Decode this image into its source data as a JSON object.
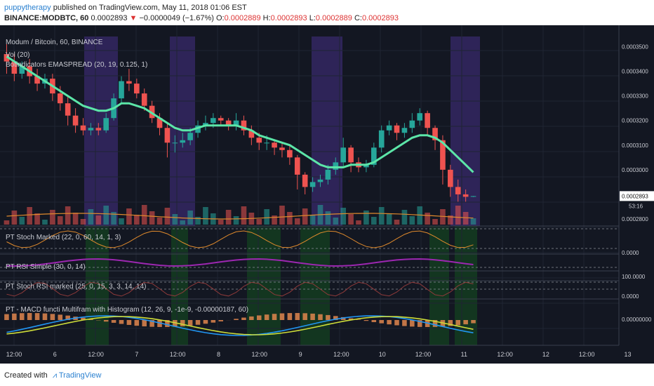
{
  "header": {
    "author": "puppytherapy",
    "published": "published on TradingView.com, May 11, 2018 01:06 EST",
    "symbol": "BINANCE:MODBTC, 60",
    "last": "0.0002893",
    "change": "−0.0000049 (−1.67%)",
    "o_label": "O:",
    "o_value": "0.0002889",
    "h_label": "H:",
    "h_value": "0.0002893",
    "l_label": "L:",
    "l_value": "0.0002889",
    "c_label": "C:",
    "c_value": "0.0002893"
  },
  "panes": {
    "main_title": "Modum / Bitcoin, 60, BINANCE",
    "vol_label": "Vol (20)",
    "ema_label": "Botindicators EMASPREAD (20, 19, 0.125, 1)",
    "stoch_label": "PT Stoch Marked (22, 0, 60, 14, 1, 3)",
    "rsi_label": "PT RSI Simple (30, 0, 14)",
    "stochrsi_label": "PT Stoch RSI marked (25, 0, 15, 3, 3, 14, 14)",
    "macd_label": "PT - MACD functi Multifram with Histogram (12, 26, 9, -1e-9, -0.00000187, 60)"
  },
  "price_axis": {
    "ticks": [
      "0.0003500",
      "0.0003400",
      "0.0003300",
      "0.0003200",
      "0.0003100",
      "0.0003000",
      "0.0002800"
    ],
    "last_tag": "0.0002893",
    "countdown": "53:16",
    "stoch_tick": "0.0000",
    "stochrsi_ticks": [
      "100.0000",
      "0.0000"
    ],
    "macd_tick": "0.00000000"
  },
  "time_axis": {
    "labels": [
      "12:00",
      "6",
      "12:00",
      "7",
      "12:00",
      "8",
      "12:00",
      "9",
      "12:00",
      "10",
      "12:00",
      "11",
      "12:00",
      "12",
      "12:00",
      "13"
    ]
  },
  "chart_data": {
    "type": "candlestick",
    "symbol": "MODBTC",
    "interval": "60",
    "ylim": [
      0.00028,
      0.000353
    ],
    "candles_approx": [
      {
        "o": 0.000347,
        "c": 0.000344,
        "h": 0.000351,
        "l": 0.000339
      },
      {
        "o": 0.000344,
        "c": 0.000339,
        "h": 0.000347,
        "l": 0.000336
      },
      {
        "o": 0.000339,
        "c": 0.000342,
        "h": 0.000344,
        "l": 0.000337
      },
      {
        "o": 0.000342,
        "c": 0.000338,
        "h": 0.000345,
        "l": 0.000335
      },
      {
        "o": 0.000338,
        "c": 0.000335,
        "h": 0.000341,
        "l": 0.000332
      },
      {
        "o": 0.000335,
        "c": 0.000337,
        "h": 0.000339,
        "l": 0.000333
      },
      {
        "o": 0.000337,
        "c": 0.000331,
        "h": 0.000339,
        "l": 0.000328
      },
      {
        "o": 0.000331,
        "c": 0.000327,
        "h": 0.000334,
        "l": 0.000324
      },
      {
        "o": 0.000327,
        "c": 0.000322,
        "h": 0.00033,
        "l": 0.000318
      },
      {
        "o": 0.000322,
        "c": 0.000318,
        "h": 0.000325,
        "l": 0.000315
      },
      {
        "o": 0.000318,
        "c": 0.000316,
        "h": 0.000321,
        "l": 0.000314
      },
      {
        "o": 0.000316,
        "c": 0.000317,
        "h": 0.000319,
        "l": 0.000314
      },
      {
        "o": 0.000317,
        "c": 0.000316,
        "h": 0.000319,
        "l": 0.000314
      },
      {
        "o": 0.000316,
        "c": 0.000321,
        "h": 0.000323,
        "l": 0.000315
      },
      {
        "o": 0.000321,
        "c": 0.000329,
        "h": 0.000331,
        "l": 0.00032
      },
      {
        "o": 0.000329,
        "c": 0.000336,
        "h": 0.000338,
        "l": 0.000327
      },
      {
        "o": 0.000336,
        "c": 0.000335,
        "h": 0.000341,
        "l": 0.000332
      },
      {
        "o": 0.000335,
        "c": 0.000331,
        "h": 0.000337,
        "l": 0.000329
      },
      {
        "o": 0.000331,
        "c": 0.000326,
        "h": 0.000333,
        "l": 0.000324
      },
      {
        "o": 0.000326,
        "c": 0.000321,
        "h": 0.000328,
        "l": 0.000319
      },
      {
        "o": 0.000321,
        "c": 0.000317,
        "h": 0.000323,
        "l": 0.000314
      },
      {
        "o": 0.000317,
        "c": 0.000311,
        "h": 0.000319,
        "l": 0.000305
      },
      {
        "o": 0.000311,
        "c": 0.000311,
        "h": 0.000314,
        "l": 0.000307
      },
      {
        "o": 0.000311,
        "c": 0.000312,
        "h": 0.000315,
        "l": 0.000309
      },
      {
        "o": 0.000312,
        "c": 0.000315,
        "h": 0.000317,
        "l": 0.00031
      },
      {
        "o": 0.000315,
        "c": 0.000318,
        "h": 0.00032,
        "l": 0.000313
      },
      {
        "o": 0.000318,
        "c": 0.000319,
        "h": 0.000322,
        "l": 0.000316
      },
      {
        "o": 0.000319,
        "c": 0.000321,
        "h": 0.000323,
        "l": 0.000317
      },
      {
        "o": 0.000321,
        "c": 0.00032,
        "h": 0.000322,
        "l": 0.000318
      },
      {
        "o": 0.00032,
        "c": 0.000318,
        "h": 0.000321,
        "l": 0.000316
      },
      {
        "o": 0.000318,
        "c": 0.00032,
        "h": 0.000323,
        "l": 0.000316
      },
      {
        "o": 0.00032,
        "c": 0.000316,
        "h": 0.000322,
        "l": 0.000314
      },
      {
        "o": 0.000316,
        "c": 0.000313,
        "h": 0.000318,
        "l": 0.00031
      },
      {
        "o": 0.000313,
        "c": 0.000311,
        "h": 0.000315,
        "l": 0.000308
      },
      {
        "o": 0.000311,
        "c": 0.000311,
        "h": 0.000314,
        "l": 0.000308
      },
      {
        "o": 0.000311,
        "c": 0.000309,
        "h": 0.000312,
        "l": 0.000306
      },
      {
        "o": 0.000309,
        "c": 0.000308,
        "h": 0.000311,
        "l": 0.000305
      },
      {
        "o": 0.000308,
        "c": 0.000305,
        "h": 0.00031,
        "l": 0.000302
      },
      {
        "o": 0.000305,
        "c": 0.000298,
        "h": 0.000306,
        "l": 0.000292
      },
      {
        "o": 0.000298,
        "c": 0.000293,
        "h": 0.000299,
        "l": 0.00029
      },
      {
        "o": 0.000293,
        "c": 0.000295,
        "h": 0.000297,
        "l": 0.000291
      },
      {
        "o": 0.000295,
        "c": 0.000296,
        "h": 0.000298,
        "l": 0.000293
      },
      {
        "o": 0.000296,
        "c": 0.0003,
        "h": 0.000302,
        "l": 0.000294
      },
      {
        "o": 0.0003,
        "c": 0.000303,
        "h": 0.000305,
        "l": 0.000298
      },
      {
        "o": 0.000303,
        "c": 0.000309,
        "h": 0.000313,
        "l": 0.000301
      },
      {
        "o": 0.000309,
        "c": 0.000303,
        "h": 0.00031,
        "l": 0.000299
      },
      {
        "o": 0.000303,
        "c": 0.000301,
        "h": 0.000305,
        "l": 0.000299
      },
      {
        "o": 0.000301,
        "c": 0.000302,
        "h": 0.000304,
        "l": 0.000299
      },
      {
        "o": 0.000302,
        "c": 0.000309,
        "h": 0.000311,
        "l": 0.000301
      },
      {
        "o": 0.000309,
        "c": 0.000316,
        "h": 0.000318,
        "l": 0.000307
      },
      {
        "o": 0.000316,
        "c": 0.000318,
        "h": 0.00032,
        "l": 0.000314
      },
      {
        "o": 0.000318,
        "c": 0.000315,
        "h": 0.000319,
        "l": 0.000312
      },
      {
        "o": 0.000315,
        "c": 0.000317,
        "h": 0.000319,
        "l": 0.000313
      },
      {
        "o": 0.000317,
        "c": 0.00032,
        "h": 0.000323,
        "l": 0.000315
      },
      {
        "o": 0.00032,
        "c": 0.000323,
        "h": 0.000325,
        "l": 0.000318
      },
      {
        "o": 0.000323,
        "c": 0.000317,
        "h": 0.000324,
        "l": 0.000314
      },
      {
        "o": 0.000317,
        "c": 0.000312,
        "h": 0.000318,
        "l": 0.000308
      },
      {
        "o": 0.000312,
        "c": 0.0003,
        "h": 0.000314,
        "l": 0.000294
      },
      {
        "o": 0.0003,
        "c": 0.000293,
        "h": 0.000302,
        "l": 0.000289
      },
      {
        "o": 0.000293,
        "c": 0.00029,
        "h": 0.000296,
        "l": 0.000287
      },
      {
        "o": 0.00029,
        "c": 0.000289,
        "h": 0.000292,
        "l": 0.000287
      },
      {
        "o": 0.000289,
        "c": 0.0002893,
        "h": 0.0002893,
        "l": 0.0002889
      }
    ],
    "ema": [
      0.000346,
      0.000344,
      0.000342,
      0.00034,
      0.000338,
      0.000336,
      0.000334,
      0.000332,
      0.00033,
      0.000328,
      0.000326,
      0.000325,
      0.000324,
      0.000324,
      0.000325,
      0.000327,
      0.000327,
      0.000326,
      0.000325,
      0.000323,
      0.000321,
      0.000319,
      0.000317,
      0.000316,
      0.000316,
      0.000317,
      0.000318,
      0.000318,
      0.000318,
      0.000318,
      0.000318,
      0.000317,
      0.000316,
      0.000314,
      0.000313,
      0.000312,
      0.000311,
      0.00031,
      0.000308,
      0.000306,
      0.000304,
      0.000302,
      0.000301,
      0.000301,
      0.000301,
      0.000302,
      0.000302,
      0.000302,
      0.000303,
      0.000305,
      0.000307,
      0.000309,
      0.000311,
      0.000313,
      0.000314,
      0.000314,
      0.000313,
      0.000311,
      0.000308,
      0.000305,
      0.000302,
      0.000299
    ]
  },
  "colors": {
    "background": "#131722",
    "up": "#26a69a",
    "down": "#ef5350",
    "ema": "#5ce6a8",
    "highlight_purple": "#2e2458",
    "highlight_green": "#14451f",
    "stoch_line": "#e08a2c",
    "rsi_line": "#9c27b0",
    "stochrsi_line": "#8e3a3a",
    "macd_line": "#2196f3",
    "signal_line": "#cddc39",
    "hist": "#e0864d"
  }
}
